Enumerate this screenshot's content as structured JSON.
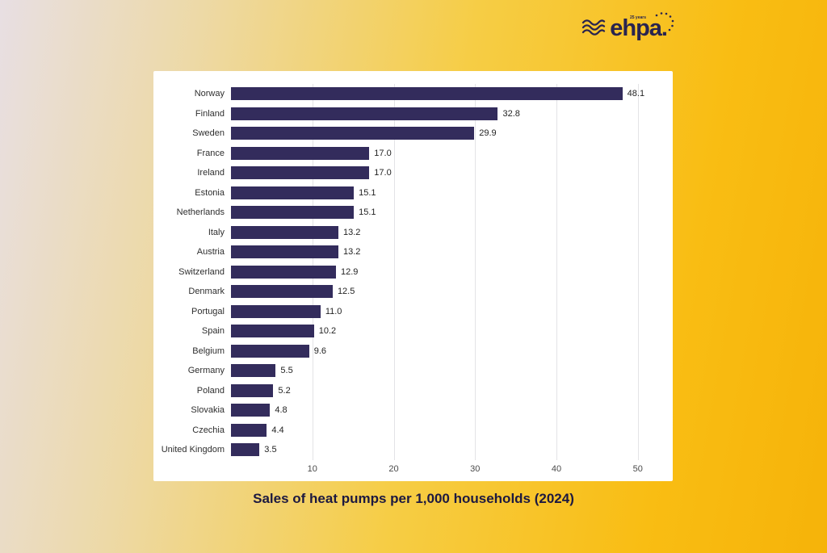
{
  "logo": {
    "text": "ehpa.",
    "tagline": "25 years"
  },
  "caption": "Sales of heat pumps per 1,000 households (2024)",
  "chart_data": {
    "type": "bar",
    "orientation": "horizontal",
    "title": "Sales of heat pumps per 1,000 households (2024)",
    "categories": [
      "Norway",
      "Finland",
      "Sweden",
      "France",
      "Ireland",
      "Estonia",
      "Netherlands",
      "Italy",
      "Austria",
      "Switzerland",
      "Denmark",
      "Portugal",
      "Spain",
      "Belgium",
      "Germany",
      "Poland",
      "Slovakia",
      "Czechia",
      "United Kingdom"
    ],
    "values": [
      48.1,
      32.8,
      29.9,
      17.0,
      17.0,
      15.1,
      15.1,
      13.2,
      13.2,
      12.9,
      12.5,
      11.0,
      10.2,
      9.6,
      5.5,
      5.2,
      4.8,
      4.4,
      3.5
    ],
    "xticks": [
      10,
      20,
      30,
      40,
      50
    ],
    "xlim": [
      0,
      52.5
    ],
    "bar_color": "#332c5c",
    "grid": true,
    "legend": false,
    "xlabel": "",
    "ylabel": ""
  }
}
